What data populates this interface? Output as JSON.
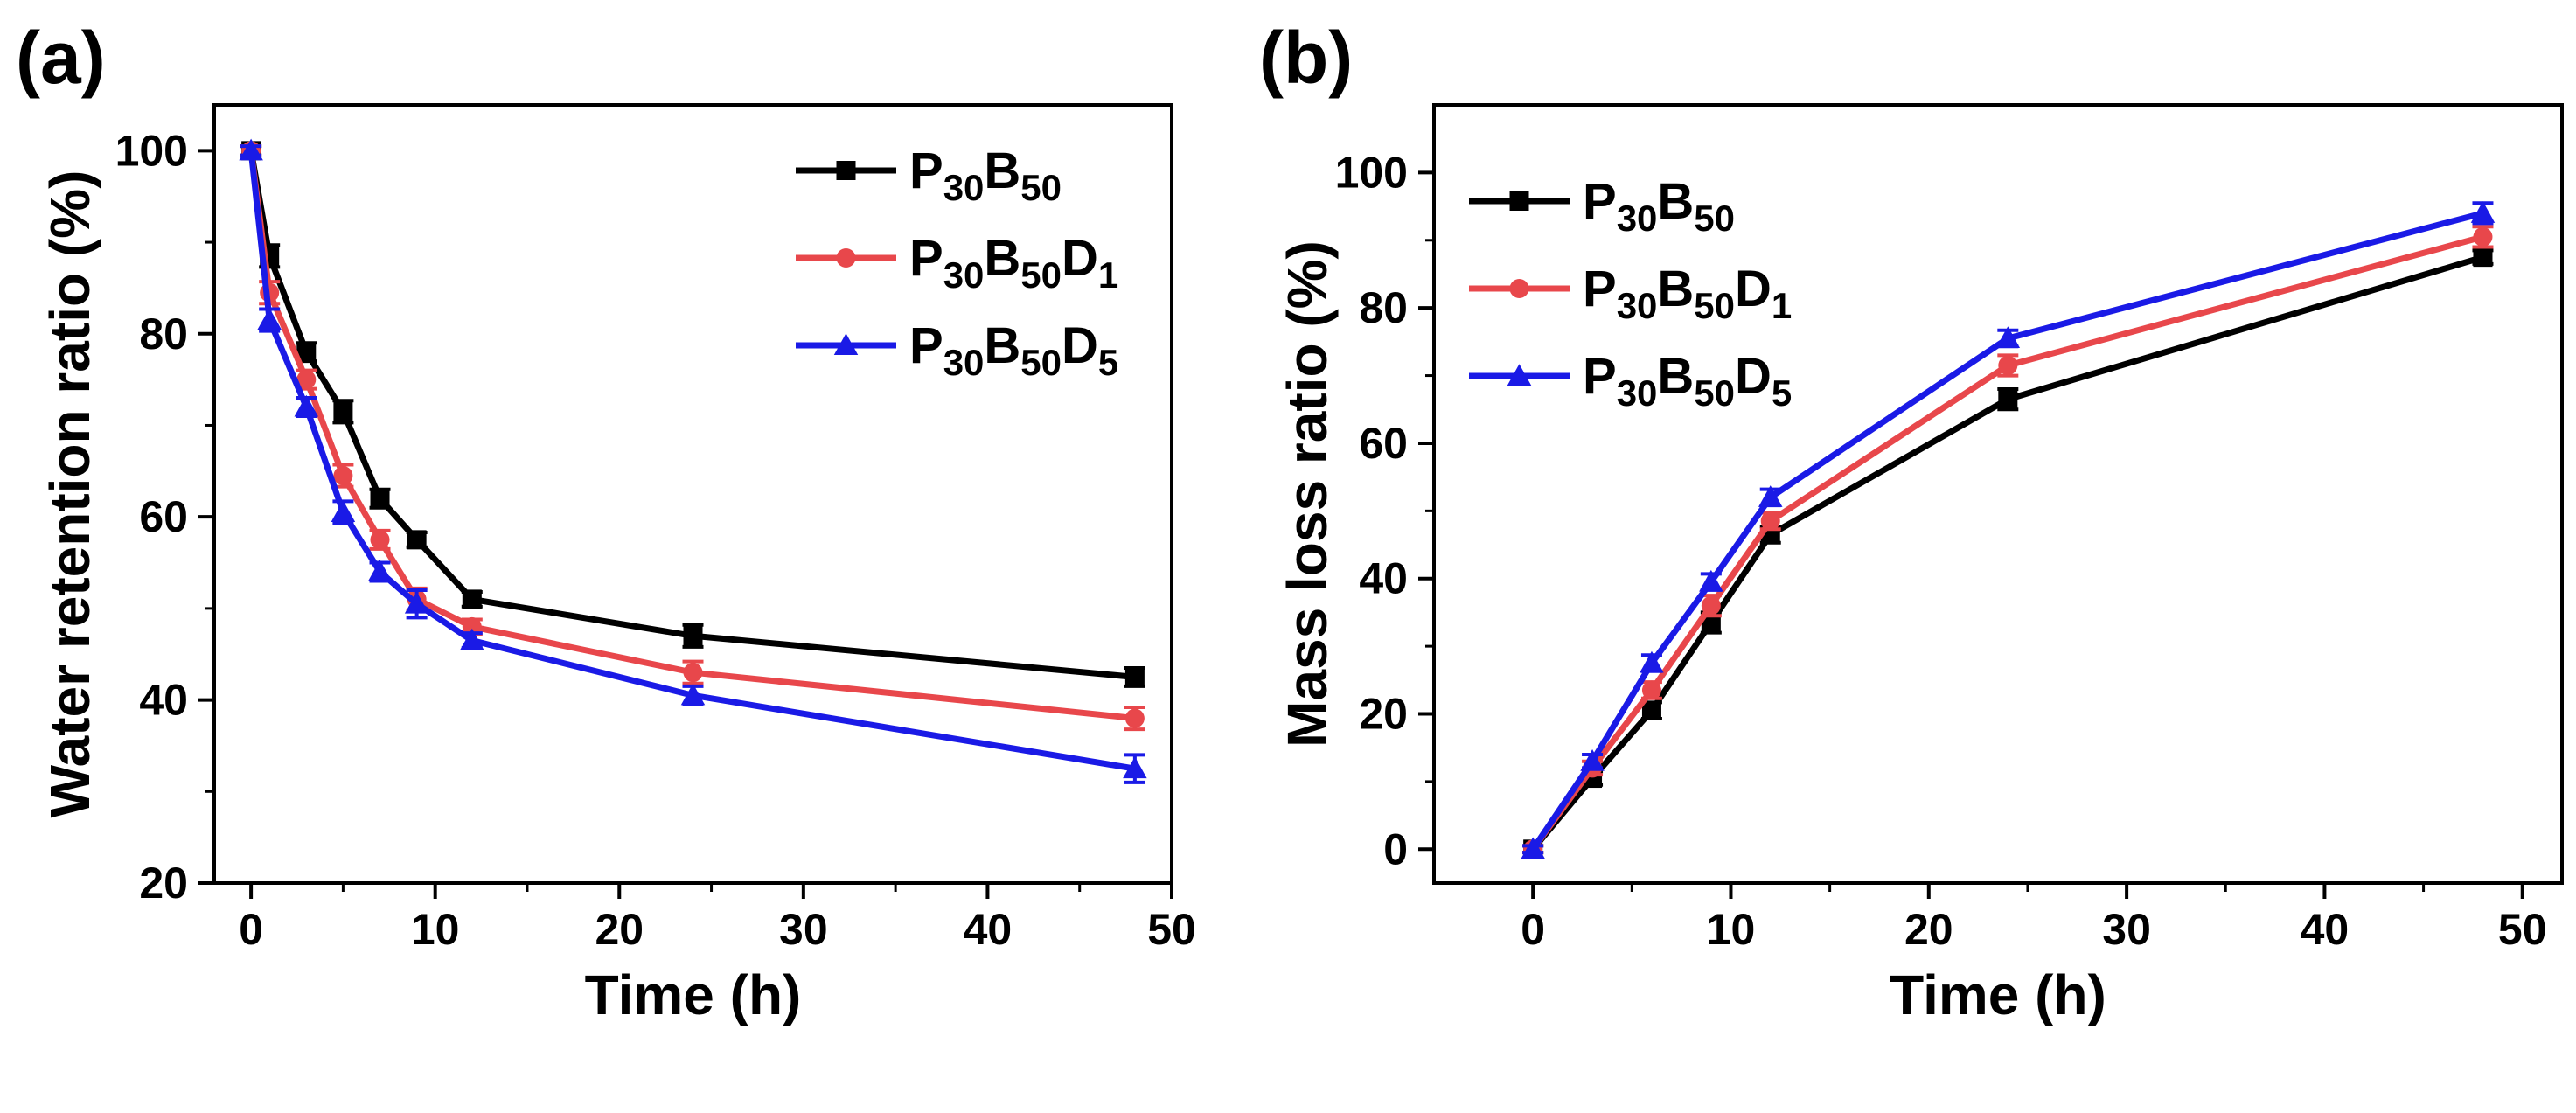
{
  "chart_data": [
    {
      "panel_label": "(a)",
      "type": "line",
      "xlabel": "Time (h)",
      "ylabel": "Water retention ratio (%)",
      "xlim": [
        -2,
        50
      ],
      "ylim": [
        20,
        105
      ],
      "xticks": [
        0,
        10,
        20,
        30,
        40,
        50
      ],
      "yticks": [
        20,
        40,
        60,
        80,
        100
      ],
      "xtick_labels": [
        "0",
        "10",
        "20",
        "30",
        "40",
        "50"
      ],
      "ytick_labels": [
        "20",
        "40",
        "60",
        "80",
        "100"
      ],
      "legend_position": "top-right",
      "series": [
        {
          "name": "P30B50",
          "legend_parts": [
            [
              "P",
              ""
            ],
            [
              "30",
              "sub"
            ],
            [
              "B",
              ""
            ],
            [
              "50",
              "sub"
            ]
          ],
          "color": "#000000",
          "marker": "square",
          "x": [
            0,
            1,
            3,
            5,
            7,
            9,
            12,
            24,
            48
          ],
          "y": [
            100,
            88.5,
            78,
            71.5,
            62,
            57.5,
            51,
            47,
            42.5
          ],
          "err": [
            0.5,
            1.2,
            1.0,
            1.2,
            1.0,
            0.8,
            0.8,
            1.2,
            1.0
          ]
        },
        {
          "name": "P30B50D1",
          "legend_parts": [
            [
              "P",
              ""
            ],
            [
              "30",
              "sub"
            ],
            [
              "B",
              ""
            ],
            [
              "50",
              "sub"
            ],
            [
              "D",
              ""
            ],
            [
              "1",
              "sub"
            ]
          ],
          "color": "#e8474b",
          "marker": "circle",
          "x": [
            0,
            1,
            3,
            5,
            7,
            9,
            12,
            24,
            48
          ],
          "y": [
            100,
            84.5,
            75,
            64.5,
            57.5,
            51,
            48,
            43,
            38
          ],
          "err": [
            0.5,
            1.2,
            1.0,
            1.2,
            1.0,
            1.2,
            0.8,
            1.2,
            1.2
          ]
        },
        {
          "name": "P30B50D5",
          "legend_parts": [
            [
              "P",
              ""
            ],
            [
              "30",
              "sub"
            ],
            [
              "B",
              ""
            ],
            [
              "50",
              "sub"
            ],
            [
              "D",
              ""
            ],
            [
              "5",
              "sub"
            ]
          ],
          "color": "#1a1ae6",
          "marker": "triangle",
          "x": [
            0,
            1,
            3,
            5,
            7,
            9,
            12,
            24,
            48
          ],
          "y": [
            100,
            81.5,
            72,
            60.5,
            54,
            50.5,
            46.5,
            40.5,
            32.5
          ],
          "err": [
            0.5,
            1.2,
            1.0,
            1.2,
            1.0,
            1.5,
            0.8,
            1.0,
            1.5
          ]
        }
      ]
    },
    {
      "panel_label": "(b)",
      "type": "line",
      "xlabel": "Time (h)",
      "ylabel": "Mass loss ratio (%)",
      "xlim": [
        -5,
        52
      ],
      "ylim": [
        -5,
        110
      ],
      "xticks": [
        0,
        10,
        20,
        30,
        40,
        50
      ],
      "yticks": [
        0,
        20,
        40,
        60,
        80,
        100
      ],
      "xtick_labels": [
        "0",
        "10",
        "20",
        "30",
        "40",
        "50"
      ],
      "ytick_labels": [
        "0",
        "20",
        "40",
        "60",
        "80",
        "100"
      ],
      "legend_position": "top-left",
      "series": [
        {
          "name": "P30B50",
          "legend_parts": [
            [
              "P",
              ""
            ],
            [
              "30",
              "sub"
            ],
            [
              "B",
              ""
            ],
            [
              "50",
              "sub"
            ]
          ],
          "color": "#000000",
          "marker": "square",
          "x": [
            0,
            3,
            6,
            9,
            12,
            24,
            48
          ],
          "y": [
            0,
            10.5,
            20.5,
            33.5,
            46.5,
            66.5,
            87.5
          ],
          "err": [
            0.5,
            1.0,
            1.2,
            1.5,
            1.2,
            1.5,
            1.0
          ]
        },
        {
          "name": "P30B50D1",
          "legend_parts": [
            [
              "P",
              ""
            ],
            [
              "30",
              "sub"
            ],
            [
              "B",
              ""
            ],
            [
              "50",
              "sub"
            ],
            [
              "D",
              ""
            ],
            [
              "1",
              "sub"
            ]
          ],
          "color": "#e8474b",
          "marker": "circle",
          "x": [
            0,
            3,
            6,
            9,
            12,
            24,
            48
          ],
          "y": [
            0,
            12,
            23.5,
            36,
            48.5,
            71.5,
            90.5
          ],
          "err": [
            0.5,
            1.0,
            1.2,
            1.5,
            1.2,
            1.5,
            1.5
          ]
        },
        {
          "name": "P30B50D5",
          "legend_parts": [
            [
              "P",
              ""
            ],
            [
              "30",
              "sub"
            ],
            [
              "B",
              ""
            ],
            [
              "50",
              "sub"
            ],
            [
              "D",
              ""
            ],
            [
              "5",
              "sub"
            ]
          ],
          "color": "#1a1ae6",
          "marker": "triangle",
          "x": [
            0,
            3,
            6,
            9,
            12,
            24,
            48
          ],
          "y": [
            0,
            13,
            27.5,
            39.5,
            52,
            75.5,
            94
          ],
          "err": [
            0.5,
            1.0,
            1.2,
            1.2,
            1.2,
            1.2,
            1.5
          ]
        }
      ]
    }
  ]
}
